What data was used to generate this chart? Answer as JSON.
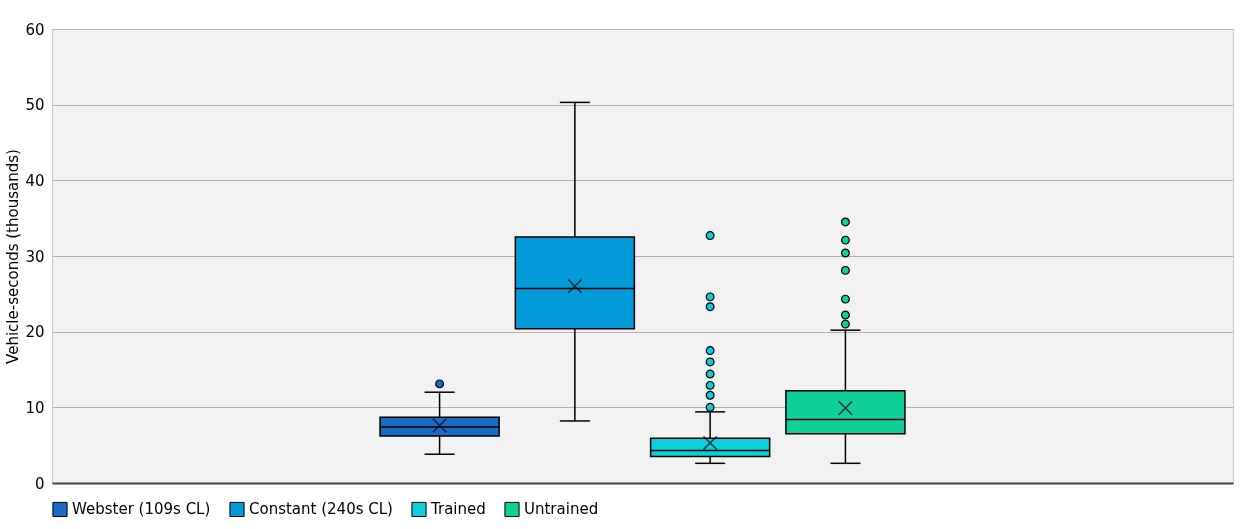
{
  "chart_data": {
    "type": "box",
    "ylabel": "Vehicle-seconds (thousands)",
    "categories": [
      null
    ],
    "ylim": [
      0,
      60
    ],
    "yticks": [
      0,
      10,
      20,
      30,
      40,
      50,
      60
    ],
    "grid": "y",
    "legend": "bottom",
    "tick_labels": "y",
    "marker": "circle",
    "series": [
      {
        "name": "Webster (109s CL)",
        "color": "#1a6cc4",
        "boxes": [
          {
            "low": 3.8,
            "q1": 6.2,
            "median": 7.4,
            "q3": 8.7,
            "high": 12.0,
            "mean": 7.6,
            "outliers": [
              13.1
            ]
          }
        ]
      },
      {
        "name": "Constant (240s CL)",
        "color": "#009bd8",
        "boxes": [
          {
            "low": 8.2,
            "q1": 20.4,
            "median": 25.7,
            "q3": 32.5,
            "high": 50.3,
            "mean": 26.0
          }
        ]
      },
      {
        "name": "Trained",
        "color": "#0ccfdb",
        "boxes": [
          {
            "low": 2.6,
            "q1": 3.5,
            "median": 4.3,
            "q3": 5.9,
            "high": 9.4,
            "mean": 5.3,
            "outliers": [
              32.7,
              24.6,
              23.3,
              17.5,
              16.0,
              14.4,
              12.9,
              11.6,
              10.0
            ]
          }
        ]
      },
      {
        "name": "Untrained",
        "color": "#10cf98",
        "boxes": [
          {
            "low": 2.6,
            "q1": 6.5,
            "median": 8.4,
            "q3": 12.2,
            "high": 20.2,
            "mean": 9.9,
            "outliers": [
              34.5,
              32.1,
              30.4,
              28.1,
              24.3,
              22.2,
              21.0
            ]
          }
        ]
      }
    ]
  }
}
